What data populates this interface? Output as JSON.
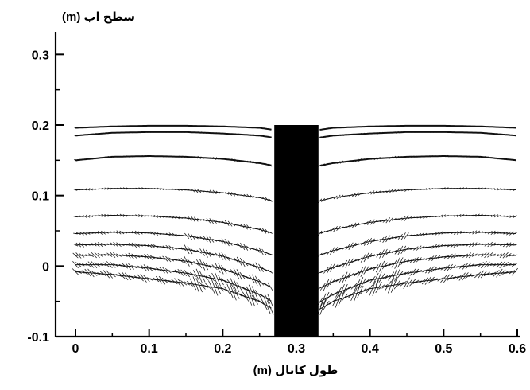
{
  "chart_data": {
    "type": "scatter",
    "title": "",
    "xlabel": "طول کانال (m)",
    "ylabel": "سطح اب (m)",
    "xlim": [
      0,
      0.6
    ],
    "ylim": [
      -0.1,
      0.33
    ],
    "xticks": [
      "0",
      "0.1",
      "0.2",
      "0.3",
      "0.4",
      "0.5",
      "0.6"
    ],
    "yticks": [
      "-0.1",
      "0",
      "0.1",
      "0.2",
      "0.3"
    ],
    "grid": false,
    "obstacle": {
      "x": [
        0.27,
        0.33
      ],
      "y": [
        -0.1,
        0.2
      ],
      "color": "#000000"
    },
    "series": [
      {
        "x": [
          0.0,
          0.05,
          0.1,
          0.15,
          0.2,
          0.25,
          0.27,
          0.33,
          0.35,
          0.4,
          0.45,
          0.5,
          0.55,
          0.6
        ],
        "y": [
          0.196,
          0.198,
          0.199,
          0.199,
          0.198,
          0.196,
          0.193,
          0.193,
          0.196,
          0.198,
          0.199,
          0.199,
          0.198,
          0.196
        ]
      },
      {
        "x": [
          0.0,
          0.05,
          0.1,
          0.15,
          0.2,
          0.25,
          0.27,
          0.33,
          0.35,
          0.4,
          0.45,
          0.5,
          0.55,
          0.6
        ],
        "y": [
          0.185,
          0.189,
          0.19,
          0.19,
          0.188,
          0.185,
          0.182,
          0.182,
          0.185,
          0.188,
          0.19,
          0.19,
          0.189,
          0.185
        ]
      },
      {
        "x": [
          0.0,
          0.05,
          0.1,
          0.15,
          0.2,
          0.25,
          0.27,
          0.33,
          0.35,
          0.4,
          0.45,
          0.5,
          0.55,
          0.6
        ],
        "y": [
          0.15,
          0.155,
          0.156,
          0.155,
          0.152,
          0.146,
          0.142,
          0.142,
          0.146,
          0.152,
          0.155,
          0.156,
          0.155,
          0.15
        ]
      },
      {
        "x": [
          0.0,
          0.05,
          0.1,
          0.15,
          0.2,
          0.25,
          0.27,
          0.33,
          0.35,
          0.4,
          0.45,
          0.5,
          0.55,
          0.6
        ],
        "y": [
          0.108,
          0.11,
          0.11,
          0.108,
          0.104,
          0.097,
          0.092,
          0.092,
          0.097,
          0.104,
          0.108,
          0.11,
          0.11,
          0.108
        ]
      },
      {
        "x": [
          0.0,
          0.05,
          0.1,
          0.15,
          0.2,
          0.25,
          0.27,
          0.33,
          0.35,
          0.4,
          0.45,
          0.5,
          0.55,
          0.6
        ],
        "y": [
          0.07,
          0.072,
          0.071,
          0.068,
          0.062,
          0.052,
          0.046,
          0.046,
          0.052,
          0.062,
          0.068,
          0.071,
          0.072,
          0.07
        ]
      },
      {
        "x": [
          0.0,
          0.05,
          0.1,
          0.15,
          0.2,
          0.25,
          0.27,
          0.33,
          0.35,
          0.4,
          0.45,
          0.5,
          0.55,
          0.6
        ],
        "y": [
          0.046,
          0.048,
          0.047,
          0.043,
          0.035,
          0.022,
          0.015,
          0.015,
          0.022,
          0.035,
          0.043,
          0.047,
          0.048,
          0.046
        ]
      },
      {
        "x": [
          0.0,
          0.05,
          0.1,
          0.15,
          0.2,
          0.25,
          0.27,
          0.33,
          0.35,
          0.4,
          0.45,
          0.5,
          0.55,
          0.6
        ],
        "y": [
          0.03,
          0.031,
          0.029,
          0.024,
          0.014,
          -0.002,
          -0.01,
          -0.01,
          -0.002,
          0.014,
          0.024,
          0.029,
          0.031,
          0.03
        ]
      },
      {
        "x": [
          0.0,
          0.05,
          0.1,
          0.15,
          0.2,
          0.25,
          0.27,
          0.33,
          0.35,
          0.4,
          0.45,
          0.5,
          0.55,
          0.6
        ],
        "y": [
          0.015,
          0.016,
          0.013,
          0.007,
          -0.004,
          -0.022,
          -0.032,
          -0.032,
          -0.022,
          -0.004,
          0.007,
          0.013,
          0.016,
          0.015
        ]
      },
      {
        "x": [
          0.0,
          0.05,
          0.1,
          0.15,
          0.2,
          0.25,
          0.27,
          0.33,
          0.35,
          0.4,
          0.45,
          0.5,
          0.55,
          0.6
        ],
        "y": [
          0.002,
          0.002,
          -0.003,
          -0.01,
          -0.02,
          -0.04,
          -0.052,
          -0.052,
          -0.04,
          -0.02,
          -0.01,
          -0.003,
          0.002,
          0.002
        ]
      },
      {
        "x": [
          0.0,
          0.05,
          0.1,
          0.15,
          0.2,
          0.25,
          0.27,
          0.33,
          0.35,
          0.4,
          0.45,
          0.5,
          0.55,
          0.6
        ],
        "y": [
          -0.008,
          -0.012,
          -0.018,
          -0.024,
          -0.032,
          -0.05,
          -0.062,
          -0.062,
          -0.05,
          -0.032,
          -0.024,
          -0.018,
          -0.012,
          -0.008
        ]
      }
    ]
  }
}
